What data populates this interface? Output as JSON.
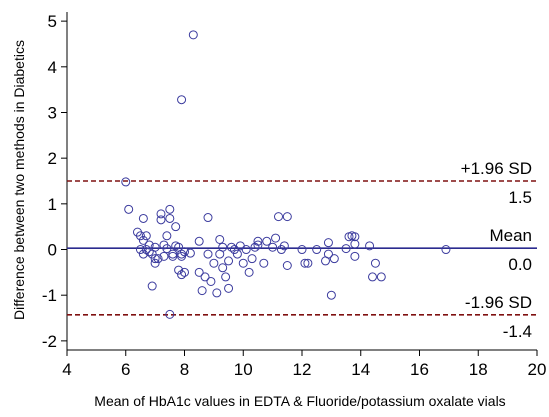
{
  "chart_data": {
    "type": "scatter",
    "title": "",
    "xlabel": "Mean of HbA1c values in EDTA & Fluoride/potassium oxalate vials",
    "ylabel": "Difference between two methods in Diabetics",
    "xlim": [
      4,
      20
    ],
    "ylim": [
      -2.2,
      5.2
    ],
    "xticks": [
      4,
      6,
      8,
      10,
      12,
      14,
      16,
      18,
      20
    ],
    "yticks": [
      -2,
      -1,
      0,
      1,
      2,
      3,
      4,
      5
    ],
    "xtick_labels": [
      "4",
      "6",
      "8",
      "10",
      "12",
      "14",
      "16",
      "18",
      "20"
    ],
    "ytick_labels": [
      "-2",
      "-1",
      "0",
      "1",
      "2",
      "3",
      "4",
      "5"
    ],
    "grid": false,
    "marker": "open-circle",
    "colors": {
      "points": "#3b3b9e",
      "mean_line": "#2b2b8f",
      "limit_lines": "#7f1010"
    },
    "reference_lines": [
      {
        "id": "upper",
        "y": 1.5,
        "style": "dashed",
        "label_above": "+1.96 SD",
        "label_below": "1.5"
      },
      {
        "id": "mean",
        "y": 0.03,
        "style": "solid",
        "label_above": "Mean",
        "label_below": "0.0"
      },
      {
        "id": "lower",
        "y": -1.43,
        "style": "dashed",
        "label_above": "-1.96 SD",
        "label_below": "-1.4"
      }
    ],
    "points": [
      [
        6.0,
        1.48
      ],
      [
        6.1,
        0.88
      ],
      [
        6.4,
        0.38
      ],
      [
        6.5,
        0.3
      ],
      [
        6.6,
        0.68
      ],
      [
        6.6,
        0.2
      ],
      [
        6.5,
        0.0
      ],
      [
        6.6,
        -0.1
      ],
      [
        6.7,
        0.0
      ],
      [
        6.7,
        0.3
      ],
      [
        6.8,
        -0.05
      ],
      [
        6.8,
        0.1
      ],
      [
        6.9,
        -0.1
      ],
      [
        6.9,
        -0.8
      ],
      [
        7.0,
        0.05
      ],
      [
        7.0,
        -0.2
      ],
      [
        7.0,
        -0.3
      ],
      [
        7.1,
        -0.2
      ],
      [
        7.2,
        0.78
      ],
      [
        7.2,
        0.65
      ],
      [
        7.3,
        0.1
      ],
      [
        7.3,
        -0.15
      ],
      [
        7.4,
        0.02
      ],
      [
        7.4,
        0.3
      ],
      [
        7.5,
        0.88
      ],
      [
        7.5,
        0.68
      ],
      [
        7.6,
        -0.1
      ],
      [
        7.6,
        -0.15
      ],
      [
        7.7,
        0.5
      ],
      [
        7.7,
        0.08
      ],
      [
        7.8,
        0.05
      ],
      [
        7.8,
        -0.45
      ],
      [
        7.9,
        -0.1
      ],
      [
        7.9,
        -0.55
      ],
      [
        7.9,
        -0.15
      ],
      [
        8.0,
        -0.5
      ],
      [
        8.0,
        -0.05
      ],
      [
        8.2,
        -0.08
      ],
      [
        8.3,
        4.7
      ],
      [
        7.9,
        3.28
      ],
      [
        7.5,
        -1.42
      ],
      [
        8.5,
        0.18
      ],
      [
        8.5,
        -0.5
      ],
      [
        8.6,
        -0.9
      ],
      [
        8.7,
        -0.6
      ],
      [
        8.8,
        0.7
      ],
      [
        8.8,
        -0.1
      ],
      [
        8.9,
        -0.7
      ],
      [
        9.0,
        -0.3
      ],
      [
        9.1,
        -0.95
      ],
      [
        9.2,
        0.22
      ],
      [
        9.2,
        -0.1
      ],
      [
        9.3,
        0.05
      ],
      [
        9.3,
        -0.4
      ],
      [
        9.4,
        -0.6
      ],
      [
        9.5,
        -0.85
      ],
      [
        9.5,
        -0.25
      ],
      [
        9.6,
        0.05
      ],
      [
        9.7,
        0.0
      ],
      [
        9.8,
        -0.1
      ],
      [
        9.9,
        0.08
      ],
      [
        10.0,
        -0.3
      ],
      [
        10.1,
        0.0
      ],
      [
        10.2,
        -0.5
      ],
      [
        10.3,
        -0.2
      ],
      [
        10.4,
        0.05
      ],
      [
        10.5,
        0.18
      ],
      [
        10.5,
        0.1
      ],
      [
        10.7,
        -0.3
      ],
      [
        10.8,
        0.18
      ],
      [
        11.0,
        0.05
      ],
      [
        11.1,
        0.25
      ],
      [
        11.2,
        0.72
      ],
      [
        11.3,
        0.0
      ],
      [
        11.4,
        0.08
      ],
      [
        11.5,
        0.72
      ],
      [
        11.5,
        -0.35
      ],
      [
        12.0,
        0.0
      ],
      [
        12.1,
        -0.3
      ],
      [
        12.2,
        -0.3
      ],
      [
        12.5,
        0.0
      ],
      [
        12.8,
        -0.25
      ],
      [
        12.9,
        -0.1
      ],
      [
        12.9,
        0.15
      ],
      [
        13.0,
        -1.0
      ],
      [
        13.1,
        -0.2
      ],
      [
        13.5,
        0.02
      ],
      [
        13.6,
        0.28
      ],
      [
        13.7,
        0.3
      ],
      [
        13.8,
        0.28
      ],
      [
        13.8,
        0.12
      ],
      [
        13.8,
        -0.15
      ],
      [
        14.3,
        0.08
      ],
      [
        14.4,
        -0.6
      ],
      [
        14.5,
        -0.3
      ],
      [
        14.7,
        -0.6
      ],
      [
        16.9,
        0.0
      ]
    ]
  }
}
